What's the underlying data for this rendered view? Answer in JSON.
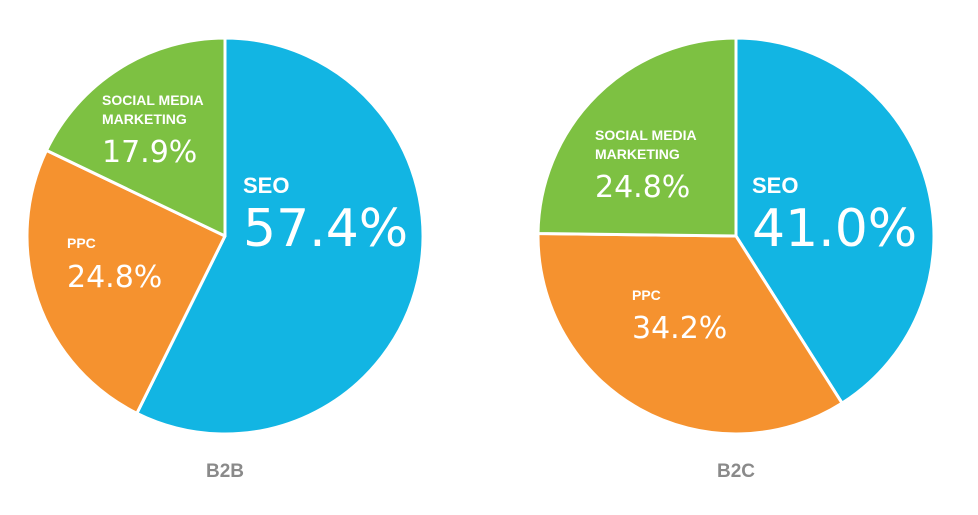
{
  "chart_data": [
    {
      "type": "pie",
      "caption": "B2B",
      "slices": [
        {
          "name_lines": [
            "SEO"
          ],
          "value": 57.4,
          "label": "57.4%",
          "color": "#12b5e3"
        },
        {
          "name_lines": [
            "PPC"
          ],
          "value": 24.8,
          "label": "24.8%",
          "color": "#f5922f"
        },
        {
          "name_lines": [
            "SOCIAL MEDIA",
            "MARKETING"
          ],
          "value": 17.9,
          "label": "17.9%",
          "color": "#7dc142"
        }
      ]
    },
    {
      "type": "pie",
      "caption": "B2C",
      "slices": [
        {
          "name_lines": [
            "SEO"
          ],
          "value": 41.0,
          "label": "41.0%",
          "color": "#12b5e3"
        },
        {
          "name_lines": [
            "PPC"
          ],
          "value": 34.2,
          "label": "34.2%",
          "color": "#f5922f"
        },
        {
          "name_lines": [
            "SOCIAL MEDIA",
            "MARKETING"
          ],
          "value": 24.8,
          "label": "24.8%",
          "color": "#7dc142"
        }
      ]
    }
  ]
}
